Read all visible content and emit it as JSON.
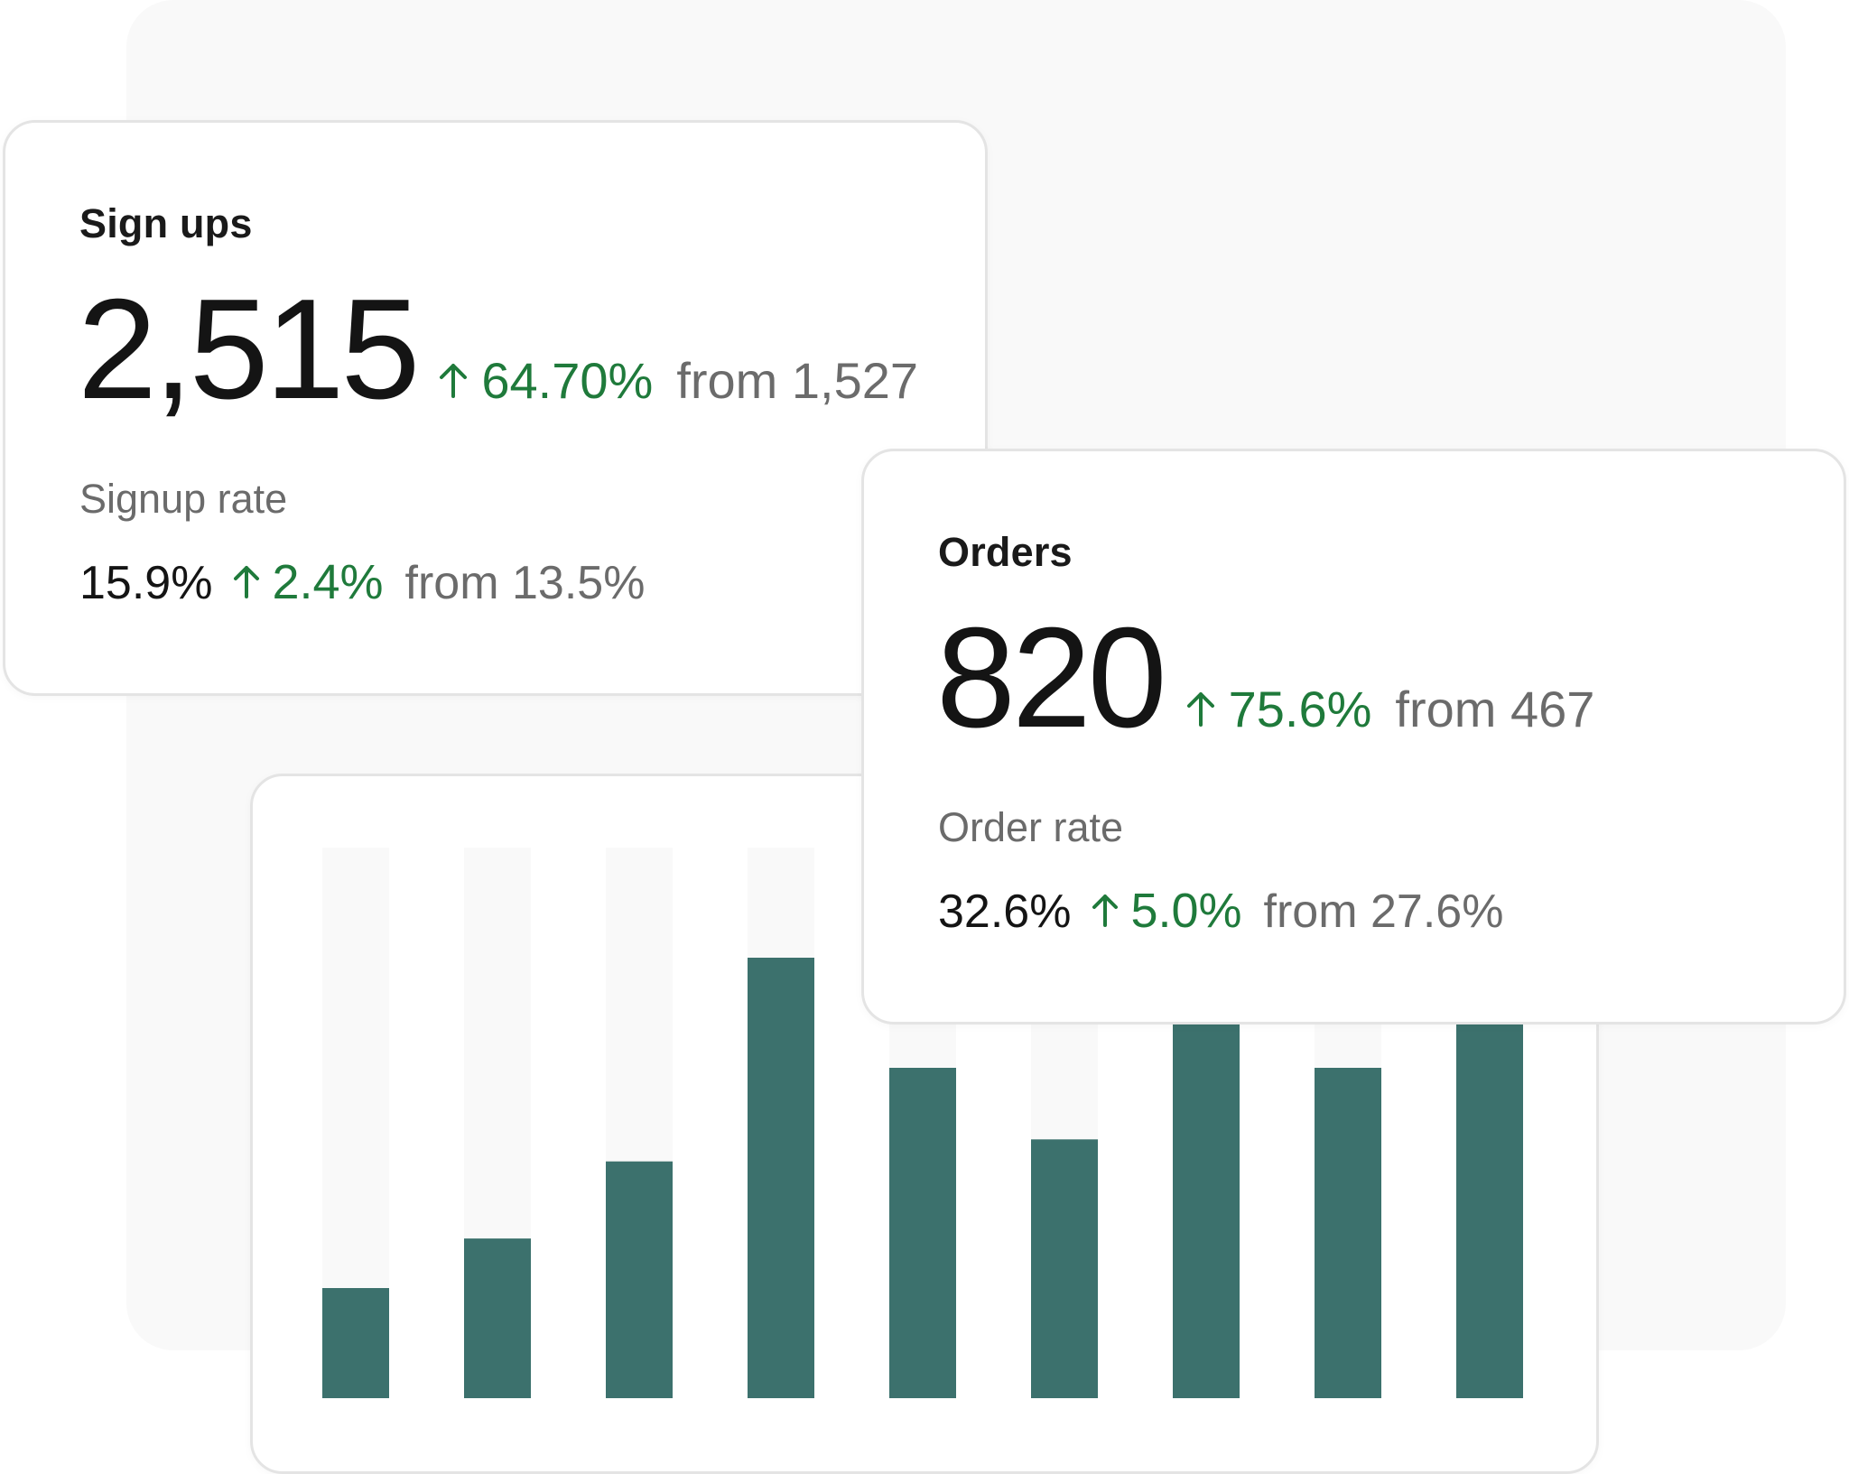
{
  "signups": {
    "title": "Sign ups",
    "value": "2,515",
    "change": "64.70%",
    "from": "from 1,527",
    "rate_label": "Signup rate",
    "rate_value": "15.9%",
    "rate_change": "2.4%",
    "rate_from": "from 13.5%"
  },
  "orders": {
    "title": "Orders",
    "value": "820",
    "change": "75.6%",
    "from": "from 467",
    "rate_label": "Order rate",
    "rate_value": "32.6%",
    "rate_change": "5.0%",
    "rate_from": "from 27.6%"
  },
  "colors": {
    "bar": "#3c716d",
    "bar_track": "#f9f9f9",
    "positive": "#1f7a3b",
    "muted": "#6b6b6b"
  },
  "chart_data": {
    "type": "bar",
    "categories": [
      "",
      "",
      "",
      "",
      "",
      "",
      "",
      "",
      ""
    ],
    "values": [
      0.2,
      0.29,
      0.43,
      0.8,
      0.6,
      0.47,
      0.7,
      0.6,
      0.7
    ],
    "ylim": [
      0,
      1
    ],
    "grid": false,
    "xlabel": "",
    "ylabel": ""
  }
}
